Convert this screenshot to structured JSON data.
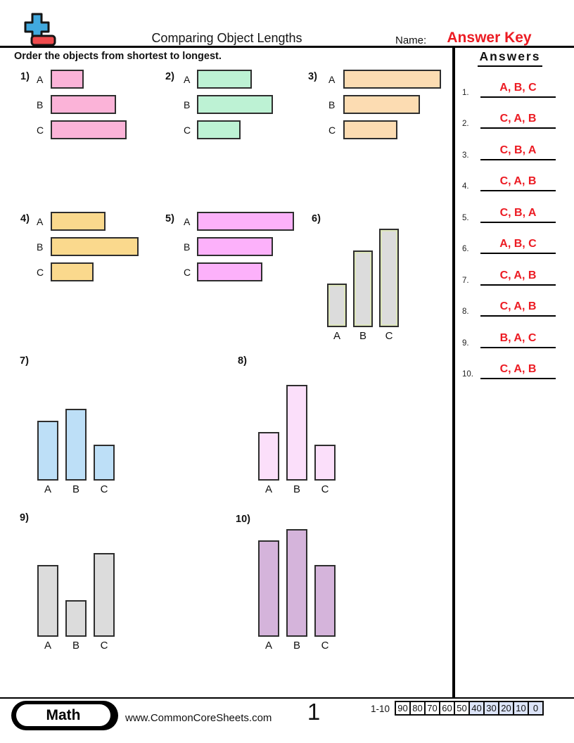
{
  "header": {
    "title": "Comparing Object Lengths",
    "name_label": "Name:",
    "name_value": "Answer Key",
    "instruction": "Order the objects from shortest to longest."
  },
  "answers_panel": {
    "title": "Answers",
    "answer_color": "#EC1B23",
    "items": [
      {
        "number": "1.",
        "answer": "A, B, C"
      },
      {
        "number": "2.",
        "answer": "C, A, B"
      },
      {
        "number": "3.",
        "answer": "C, B, A"
      },
      {
        "number": "4.",
        "answer": "C, A, B"
      },
      {
        "number": "5.",
        "answer": "C, B, A"
      },
      {
        "number": "6.",
        "answer": "A, B, C"
      },
      {
        "number": "7.",
        "answer": "C, A, B"
      },
      {
        "number": "8.",
        "answer": "C, A, B"
      },
      {
        "number": "9.",
        "answer": "B, A, C"
      },
      {
        "number": "10.",
        "answer": "C, A, B"
      }
    ]
  },
  "problems": [
    {
      "number": "1)",
      "orientation": "horizontal",
      "bar_color": "#FBB3D8",
      "bars": [
        {
          "label": "A",
          "length": 47
        },
        {
          "label": "B",
          "length": 93
        },
        {
          "label": "C",
          "length": 108
        }
      ]
    },
    {
      "number": "2)",
      "orientation": "horizontal",
      "bar_color": "#BDF2D4",
      "bars": [
        {
          "label": "A",
          "length": 78
        },
        {
          "label": "B",
          "length": 108
        },
        {
          "label": "C",
          "length": 62
        }
      ]
    },
    {
      "number": "3)",
      "orientation": "horizontal",
      "bar_color": "#FCDCB2",
      "bars": [
        {
          "label": "A",
          "length": 139
        },
        {
          "label": "B",
          "length": 109
        },
        {
          "label": "C",
          "length": 77
        }
      ]
    },
    {
      "number": "4)",
      "orientation": "horizontal",
      "bar_color": "#FAD98D",
      "bars": [
        {
          "label": "A",
          "length": 78
        },
        {
          "label": "B",
          "length": 125
        },
        {
          "label": "C",
          "length": 61
        }
      ]
    },
    {
      "number": "5)",
      "orientation": "horizontal",
      "bar_color": "#FCB1FA",
      "bars": [
        {
          "label": "A",
          "length": 138
        },
        {
          "label": "B",
          "length": 108
        },
        {
          "label": "C",
          "length": 93
        }
      ]
    },
    {
      "number": "6)",
      "orientation": "vertical",
      "bar_color": "#DCDCDC",
      "inner_edge": "#DDE6BB",
      "bars": [
        {
          "label": "A",
          "length": 62
        },
        {
          "label": "B",
          "length": 109
        },
        {
          "label": "C",
          "length": 140
        }
      ]
    },
    {
      "number": "7)",
      "orientation": "vertical",
      "bar_color": "#BDDFF7",
      "bars": [
        {
          "label": "A",
          "length": 85
        },
        {
          "label": "B",
          "length": 102
        },
        {
          "label": "C",
          "length": 51
        }
      ]
    },
    {
      "number": "8)",
      "orientation": "vertical",
      "bar_color": "#FBDFFA",
      "bars": [
        {
          "label": "A",
          "length": 69
        },
        {
          "label": "B",
          "length": 136
        },
        {
          "label": "C",
          "length": 51
        }
      ]
    },
    {
      "number": "9)",
      "orientation": "vertical",
      "bar_color": "#DCDCDC",
      "bars": [
        {
          "label": "A",
          "length": 102
        },
        {
          "label": "B",
          "length": 52
        },
        {
          "label": "C",
          "length": 119
        }
      ]
    },
    {
      "number": "10)",
      "orientation": "vertical",
      "bar_color": "#D5B4DB",
      "bars": [
        {
          "label": "A",
          "length": 137
        },
        {
          "label": "B",
          "length": 153
        },
        {
          "label": "C",
          "length": 102
        }
      ]
    }
  ],
  "footer": {
    "subject_badge": "Math",
    "website": "www.CommonCoreSheets.com",
    "page_number": "1",
    "score_range_label": "1-10",
    "highlight_color": "#DCE4F8",
    "score_cells": [
      {
        "value": "90",
        "highlighted": false
      },
      {
        "value": "80",
        "highlighted": false
      },
      {
        "value": "70",
        "highlighted": false
      },
      {
        "value": "60",
        "highlighted": false
      },
      {
        "value": "50",
        "highlighted": false
      },
      {
        "value": "40",
        "highlighted": true
      },
      {
        "value": "30",
        "highlighted": true
      },
      {
        "value": "20",
        "highlighted": true
      },
      {
        "value": "10",
        "highlighted": true
      },
      {
        "value": "0",
        "highlighted": true
      }
    ]
  }
}
